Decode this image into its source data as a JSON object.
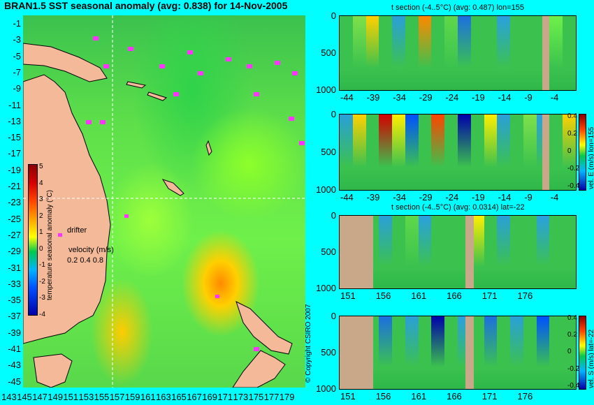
{
  "title": "BRAN1.5 SST seasonal anomaly (avg: 0.838) for 14-Nov-2005",
  "map": {
    "lat_labels": [
      "-1",
      "-3",
      "-5",
      "-7",
      "-9",
      "-11",
      "-13",
      "-15",
      "-17",
      "-19",
      "-21",
      "-23",
      "-25",
      "-27",
      "-29",
      "-31",
      "-33",
      "-35",
      "-37",
      "-39",
      "-41",
      "-43",
      "-45"
    ],
    "lon_labels": [
      "143",
      "145",
      "147",
      "149",
      "151",
      "153",
      "155",
      "157",
      "159",
      "161",
      "163",
      "165",
      "167",
      "169",
      "171",
      "173",
      "175",
      "177",
      "179"
    ],
    "colorbar": {
      "label": "temperature seasonal anomaly (°C)",
      "ticks": [
        "5",
        "4",
        "3",
        "2",
        "1",
        "0",
        "-1",
        "-2",
        "-3",
        "-4"
      ],
      "colors": [
        "#8b0000",
        "#d40000",
        "#ff4400",
        "#ff9900",
        "#ffff00",
        "#00c850",
        "#00b4ff",
        "#0050ff",
        "#0000aa"
      ]
    },
    "drifter_label": "drifter",
    "velocity_label": "velocity (m/s)",
    "velocity_values": "0.2 0.4 0.8",
    "copyright": "© Copyright CSIRO 2007"
  },
  "panels": [
    {
      "title": "t section (-4..5°C) (avg: 0.487) lon=155",
      "y_ticks": [
        "0",
        "500",
        "1000"
      ],
      "x_ticks": [
        "-44",
        "-39",
        "-34",
        "-29",
        "-24",
        "-19",
        "-14",
        "-9",
        "-4"
      ]
    },
    {
      "title": "",
      "y_ticks": [
        "0",
        "500",
        "1000"
      ],
      "x_ticks": [
        "-44",
        "-39",
        "-34",
        "-29",
        "-24",
        "-19",
        "-14",
        "-9",
        "-4"
      ],
      "cbar_label": "vel. E (m/s) lon=155",
      "cbar_ticks": [
        "0.4",
        "0.2",
        "0",
        "-0.2",
        "-0.4"
      ]
    },
    {
      "title": "t section (-4..5°C) (avg: 0.0314) lat=-22",
      "y_ticks": [
        "0",
        "500",
        "1000"
      ],
      "x_ticks": [
        "151",
        "156",
        "161",
        "166",
        "171",
        "176"
      ]
    },
    {
      "title": "",
      "y_ticks": [
        "0",
        "500",
        "1000"
      ],
      "x_ticks": [
        "151",
        "156",
        "161",
        "166",
        "171",
        "176"
      ],
      "cbar_label": "vel. S (m/s) lat=-22",
      "cbar_ticks": [
        "0.4",
        "0.2",
        "0",
        "-0.2",
        "-0.4"
      ]
    }
  ]
}
